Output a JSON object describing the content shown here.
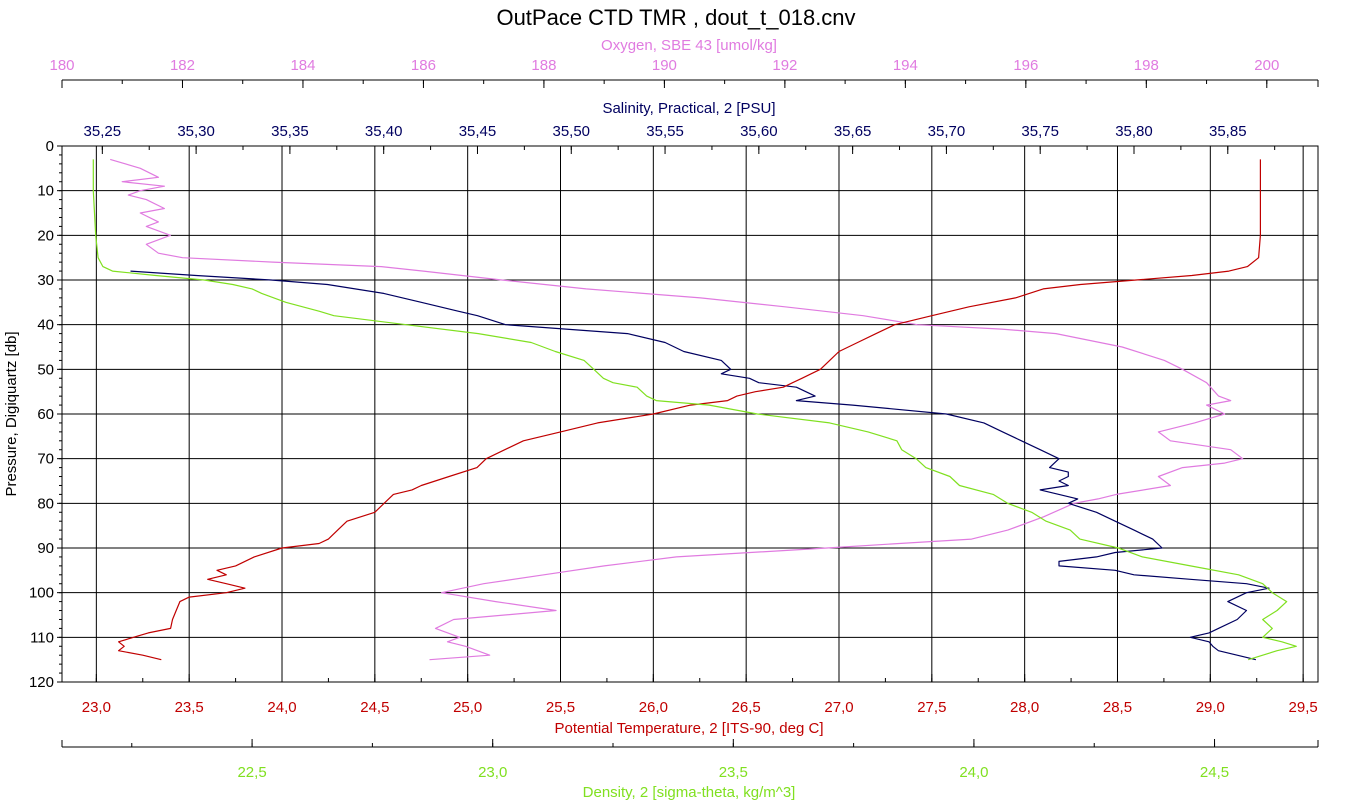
{
  "chart_data": {
    "type": "line",
    "title": "OutPace CTD TMR , dout_t_018.cnv",
    "colors": {
      "oxygen": "#e07be0",
      "salinity": "#000060",
      "temperature": "#c00000",
      "density": "#80e020",
      "frame": "#000000"
    },
    "grid": true,
    "y_axis": {
      "label": "Pressure, Digiquartz [db]",
      "range": [
        0,
        120
      ],
      "inverted": true,
      "ticks": [
        0,
        10,
        20,
        30,
        40,
        50,
        60,
        70,
        80,
        90,
        100,
        110,
        120
      ],
      "tick_labels": [
        "0",
        "10",
        "20",
        "30",
        "40",
        "50",
        "60",
        "70",
        "80",
        "90",
        "100",
        "110",
        "120"
      ]
    },
    "axes": {
      "oxygen": {
        "label": "Oxygen, SBE 43 [umol/kg]",
        "position": "top-outer",
        "range": [
          180,
          200.85
        ],
        "ticks": [
          180,
          182,
          184,
          186,
          188,
          190,
          192,
          194,
          196,
          198,
          200
        ],
        "tick_labels": [
          "180",
          "182",
          "184",
          "186",
          "188",
          "190",
          "192",
          "194",
          "196",
          "198",
          "200"
        ]
      },
      "salinity": {
        "label": "Salinity, Practical, 2 [PSU]",
        "position": "top-inner",
        "range": [
          35.2285,
          35.8981
        ],
        "ticks": [
          35.25,
          35.3,
          35.35,
          35.4,
          35.45,
          35.5,
          35.55,
          35.6,
          35.65,
          35.7,
          35.75,
          35.8,
          35.85
        ],
        "tick_labels": [
          "35,25",
          "35,30",
          "35,35",
          "35,40",
          "35,45",
          "35,50",
          "35,55",
          "35,60",
          "35,65",
          "35,70",
          "35,75",
          "35,80",
          "35,85"
        ]
      },
      "temperature": {
        "label": "Potential Temperature, 2 [ITS-90, deg C]",
        "position": "bottom-inner",
        "range": [
          22.815,
          29.58
        ],
        "ticks": [
          23.0,
          23.5,
          24.0,
          24.5,
          25.0,
          25.5,
          26.0,
          26.5,
          27.0,
          27.5,
          28.0,
          28.5,
          29.0,
          29.5
        ],
        "tick_labels": [
          "23,0",
          "23,5",
          "24,0",
          "24,5",
          "25,0",
          "25,5",
          "26,0",
          "26,5",
          "27,0",
          "27,5",
          "28,0",
          "28,5",
          "29,0",
          "29,5"
        ]
      },
      "density": {
        "label": "Density, 2 [sigma-theta, kg/m^3]",
        "position": "bottom-outer",
        "range": [
          22.105,
          24.715
        ],
        "ticks": [
          22.5,
          23.0,
          23.5,
          24.0,
          24.5
        ],
        "tick_labels": [
          "22,5",
          "23,0",
          "23,5",
          "24,0",
          "24,5"
        ]
      }
    },
    "series": [
      {
        "key": "oxygen",
        "pressure": [
          3,
          5,
          7,
          8,
          9,
          10,
          11,
          12,
          14,
          15,
          17,
          18,
          20,
          22,
          24,
          25,
          26,
          27,
          28,
          30,
          32,
          34,
          36,
          38,
          40,
          41,
          42,
          45,
          48,
          50,
          53,
          56,
          57,
          58,
          60,
          62,
          64,
          66,
          68,
          70,
          71,
          72,
          74,
          76,
          78,
          79,
          80,
          83,
          86,
          88,
          89,
          90,
          92,
          94,
          96,
          98,
          100,
          102,
          104,
          106,
          108,
          110,
          111,
          112,
          114,
          115
        ],
        "values": [
          180.8,
          181.3,
          181.6,
          181.0,
          181.7,
          181.3,
          181.1,
          181.4,
          181.7,
          181.3,
          181.6,
          181.4,
          181.8,
          181.4,
          181.6,
          182.0,
          183.5,
          185.3,
          186.0,
          187.3,
          188.7,
          190.6,
          192.0,
          193.3,
          194.2,
          195.6,
          196.5,
          197.6,
          198.3,
          198.6,
          199.0,
          199.2,
          199.4,
          199.0,
          199.3,
          198.8,
          198.2,
          198.4,
          199.4,
          199.6,
          199.3,
          198.6,
          198.2,
          198.4,
          197.5,
          197.2,
          196.8,
          196.3,
          195.7,
          195.1,
          193.9,
          192.7,
          190.2,
          189.0,
          188.0,
          187.0,
          186.3,
          187.2,
          188.2,
          186.5,
          186.2,
          186.6,
          186.4,
          186.7,
          187.1,
          186.1
        ]
      },
      {
        "key": "salinity",
        "pressure": [
          28,
          29,
          30,
          31,
          33,
          35,
          37,
          38,
          40,
          42,
          44,
          46,
          48,
          50,
          51,
          52,
          53,
          54,
          56,
          57,
          58,
          60,
          62,
          64,
          66,
          68,
          70,
          72,
          73,
          74,
          75,
          76,
          77,
          78,
          79,
          80,
          82,
          84,
          86,
          88,
          90,
          91,
          92,
          93,
          94,
          95,
          96,
          97,
          98,
          99,
          100,
          102,
          104,
          106,
          108,
          109,
          110,
          111,
          112,
          113,
          114,
          115
        ],
        "values": [
          35.265,
          35.3,
          35.34,
          35.37,
          35.4,
          35.42,
          35.44,
          35.45,
          35.465,
          35.53,
          35.55,
          35.56,
          35.58,
          35.585,
          35.58,
          35.595,
          35.6,
          35.62,
          35.63,
          35.62,
          35.65,
          35.7,
          35.72,
          35.73,
          35.74,
          35.75,
          35.76,
          35.755,
          35.765,
          35.765,
          35.76,
          35.765,
          35.75,
          35.76,
          35.77,
          35.765,
          35.78,
          35.79,
          35.8,
          35.81,
          35.815,
          35.79,
          35.78,
          35.76,
          35.76,
          35.79,
          35.8,
          35.83,
          35.86,
          35.872,
          35.86,
          35.85,
          35.86,
          35.855,
          35.845,
          35.84,
          35.83,
          35.84,
          35.842,
          35.845,
          35.855,
          35.865
        ]
      },
      {
        "key": "temperature",
        "pressure": [
          3,
          10,
          20,
          25,
          27,
          28,
          29,
          30,
          31,
          32,
          34,
          36,
          38,
          40,
          42,
          44,
          46,
          48,
          50,
          51,
          52,
          53,
          54,
          55,
          56,
          57,
          58,
          60,
          62,
          64,
          66,
          68,
          70,
          72,
          74,
          76,
          77,
          78,
          80,
          82,
          84,
          86,
          88,
          89,
          90,
          92,
          94,
          95,
          96,
          97,
          98,
          99,
          100,
          101,
          102,
          104,
          106,
          108,
          109,
          110,
          111,
          112,
          113,
          114,
          115
        ],
        "values": [
          29.27,
          29.27,
          29.27,
          29.26,
          29.2,
          29.1,
          28.9,
          28.6,
          28.3,
          28.1,
          27.95,
          27.7,
          27.5,
          27.3,
          27.2,
          27.1,
          27.0,
          26.95,
          26.9,
          26.85,
          26.8,
          26.75,
          26.7,
          26.55,
          26.45,
          26.4,
          26.2,
          26.0,
          25.7,
          25.5,
          25.3,
          25.2,
          25.1,
          25.05,
          24.9,
          24.75,
          24.7,
          24.6,
          24.55,
          24.5,
          24.35,
          24.3,
          24.25,
          24.2,
          24.0,
          23.85,
          23.75,
          23.65,
          23.7,
          23.6,
          23.7,
          23.8,
          23.7,
          23.5,
          23.45,
          23.43,
          23.41,
          23.4,
          23.28,
          23.2,
          23.12,
          23.15,
          23.12,
          23.25,
          23.35
        ]
      },
      {
        "key": "density",
        "pressure": [
          3,
          10,
          20,
          25,
          27,
          28,
          29,
          30,
          31,
          32,
          33,
          35,
          37,
          38,
          40,
          42,
          44,
          46,
          48,
          50,
          52,
          53,
          54,
          56,
          57,
          58,
          60,
          62,
          64,
          66,
          68,
          70,
          72,
          74,
          76,
          78,
          80,
          82,
          84,
          86,
          88,
          90,
          92,
          94,
          96,
          98,
          100,
          102,
          104,
          106,
          108,
          110,
          111,
          112,
          113,
          114,
          115
        ],
        "values": [
          22.17,
          22.17,
          22.175,
          22.18,
          22.19,
          22.21,
          22.3,
          22.4,
          22.46,
          22.5,
          22.52,
          22.57,
          22.64,
          22.67,
          22.82,
          22.97,
          23.08,
          23.13,
          23.19,
          23.21,
          23.23,
          23.25,
          23.3,
          23.32,
          23.34,
          23.45,
          23.55,
          23.7,
          23.78,
          23.84,
          23.85,
          23.88,
          23.9,
          23.95,
          23.97,
          24.04,
          24.07,
          24.12,
          24.15,
          24.2,
          24.22,
          24.3,
          24.35,
          24.45,
          24.55,
          24.6,
          24.62,
          24.65,
          24.63,
          24.6,
          24.62,
          24.6,
          24.64,
          24.67,
          24.63,
          24.6,
          24.57
        ]
      }
    ]
  }
}
